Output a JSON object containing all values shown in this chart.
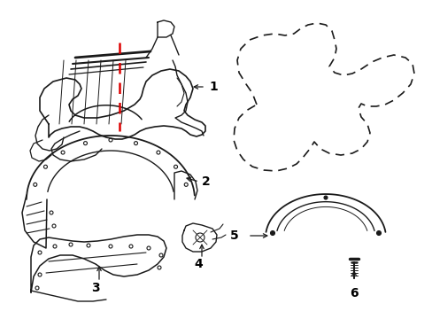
{
  "bg_color": "#ffffff",
  "line_color": "#1a1a1a",
  "red_dash_color": "#dd0000",
  "label_color": "#000000",
  "figsize": [
    4.89,
    3.6
  ],
  "dpi": 100
}
